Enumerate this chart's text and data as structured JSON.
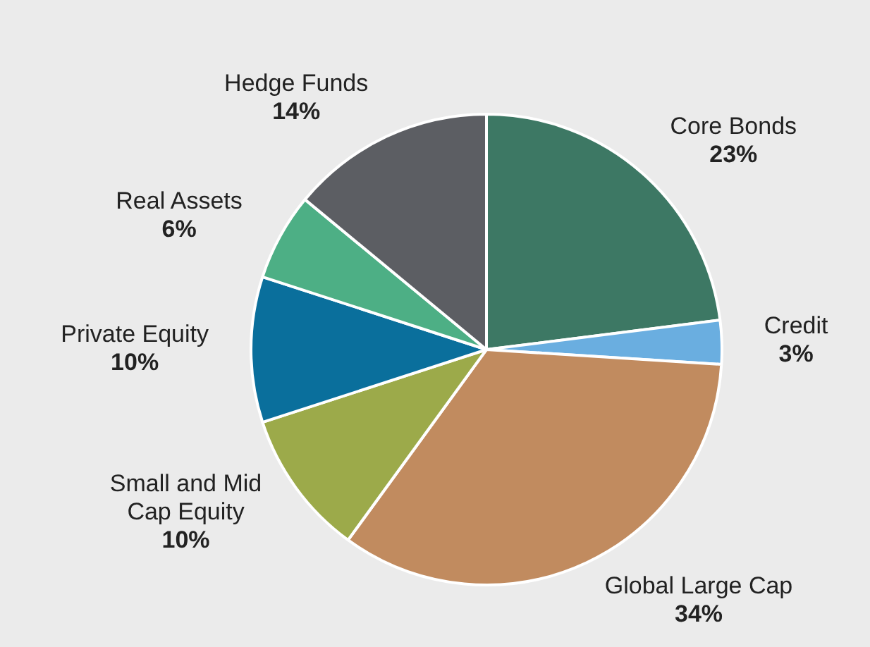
{
  "chart_data": {
    "type": "pie",
    "categories": [
      "Core Bonds",
      "Credit",
      "Global Large Cap",
      "Small and Mid Cap Equity",
      "Private Equity",
      "Real Assets",
      "Hedge Funds"
    ],
    "values": [
      23,
      3,
      34,
      10,
      10,
      6,
      14
    ],
    "colors": [
      "#3d7864",
      "#6aaee0",
      "#c18b5f",
      "#9caa4a",
      "#0a6f9c",
      "#4daf85",
      "#5c5e63"
    ],
    "value_labels": [
      "23%",
      "3%",
      "34%",
      "10%",
      "10%",
      "6%",
      "14%"
    ],
    "legend": false
  }
}
